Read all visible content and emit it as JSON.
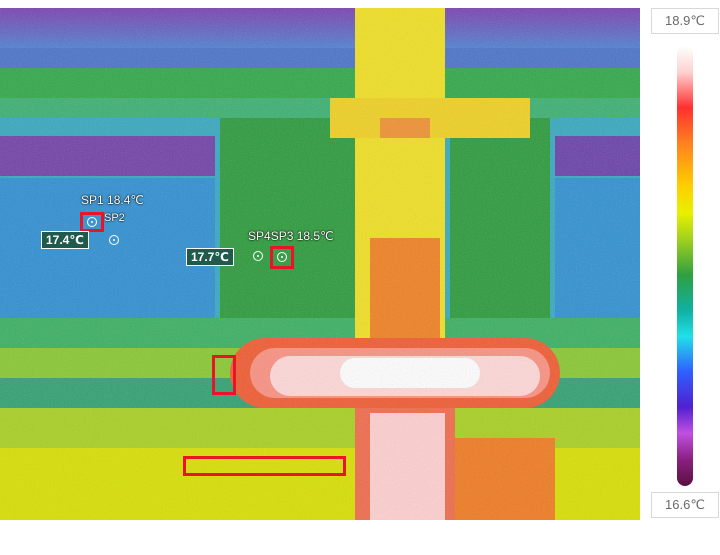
{
  "scale": {
    "max_label": "18.9℃",
    "min_label": "16.6℃"
  },
  "markers": {
    "sp1": {
      "label": "SP1",
      "temp": "18.4℃"
    },
    "sp2": {
      "label": "SP2"
    },
    "sp2_reading": "17.4℃",
    "sp4": {
      "label": "SP4"
    },
    "sp3": {
      "label": "SP3",
      "temp": "18.5℃"
    },
    "sp4_reading": "17.7℃"
  },
  "colors": {
    "annotation_red": "#e8152a",
    "reading_box_bg": "#1f5a4a"
  },
  "icons": [
    "target-icon"
  ]
}
